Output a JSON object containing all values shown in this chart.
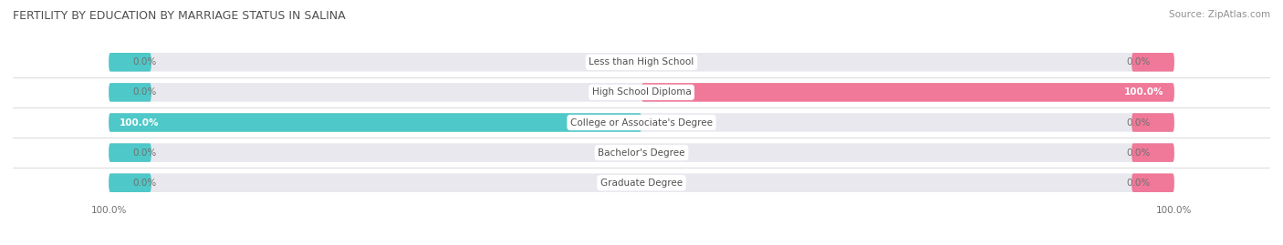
{
  "title": "FERTILITY BY EDUCATION BY MARRIAGE STATUS IN SALINA",
  "source": "Source: ZipAtlas.com",
  "categories": [
    "Less than High School",
    "High School Diploma",
    "College or Associate's Degree",
    "Bachelor's Degree",
    "Graduate Degree"
  ],
  "married_values": [
    0.0,
    0.0,
    100.0,
    0.0,
    0.0
  ],
  "unmarried_values": [
    0.0,
    100.0,
    0.0,
    0.0,
    0.0
  ],
  "married_color": "#4EC8C8",
  "unmarried_color": "#F07898",
  "bar_bg_color_left": "#E8E8EE",
  "bar_bg_color_right": "#E8E8EE",
  "label_bg_color": "#FFFFFF",
  "title_color": "#505050",
  "text_color": "#505050",
  "value_color": "#707070",
  "source_color": "#909090",
  "xlim": 100.0,
  "stub_size": 8.0,
  "figsize": [
    14.06,
    2.69
  ],
  "dpi": 100
}
